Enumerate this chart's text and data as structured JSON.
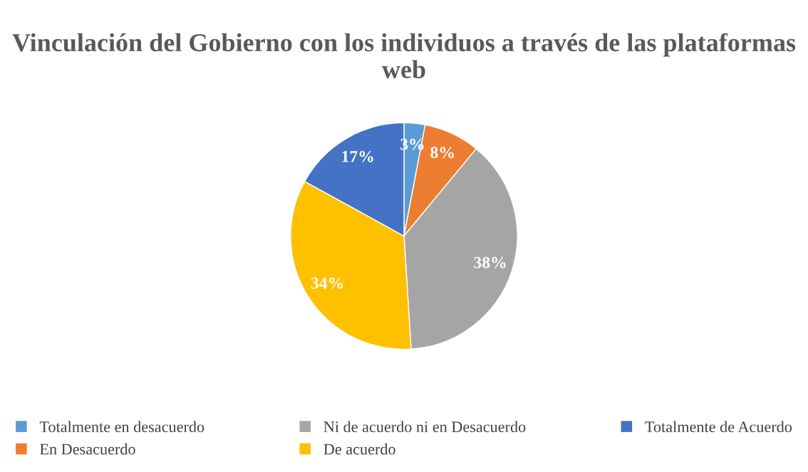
{
  "chart_data": {
    "type": "pie",
    "title": "Vinculación del Gobierno con los individuos a través de las plataformas web",
    "categories": [
      "Totalmente en desacuerdo",
      "En Desacuerdo",
      "Ni de acuerdo ni en Desacuerdo",
      "De acuerdo",
      "Totalmente de Acuerdo"
    ],
    "values": [
      3,
      8,
      38,
      34,
      17
    ],
    "colors": [
      "#5b9bd5",
      "#ed7d31",
      "#a5a5a5",
      "#ffc000",
      "#4472c4"
    ],
    "value_labels": [
      "3%",
      "8%",
      "38%",
      "34%",
      "17%"
    ],
    "legend": "bottom"
  }
}
